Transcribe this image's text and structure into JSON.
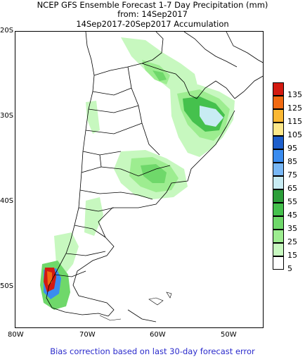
{
  "header": {
    "line1": "NCEP GFS Ensemble Forecast 1-7 Day Precipitation (mm)",
    "line2": "from: 14Sep2017",
    "line3": "14Sep2017-20Sep2017 Accumulation"
  },
  "axes": {
    "lat_labels": [
      "20S",
      "30S",
      "40S",
      "50S"
    ],
    "lon_labels": [
      "80W",
      "70W",
      "60W",
      "50W"
    ]
  },
  "colorbar": {
    "labels": [
      "135",
      "125",
      "115",
      "105",
      "95",
      "85",
      "75",
      "65",
      "55",
      "45",
      "35",
      "25",
      "15",
      "5"
    ],
    "colors": [
      "#d31a10",
      "#f26a11",
      "#fbb833",
      "#fde88a",
      "#1e5fcc",
      "#3a8cf0",
      "#78b7f5",
      "#c8ecf3",
      "#2d9f3a",
      "#45c14d",
      "#6fd86a",
      "#9ded90",
      "#c7f8bf",
      "#ffffff"
    ]
  },
  "footer": "Bias correction based on last 30-day forecast error"
}
